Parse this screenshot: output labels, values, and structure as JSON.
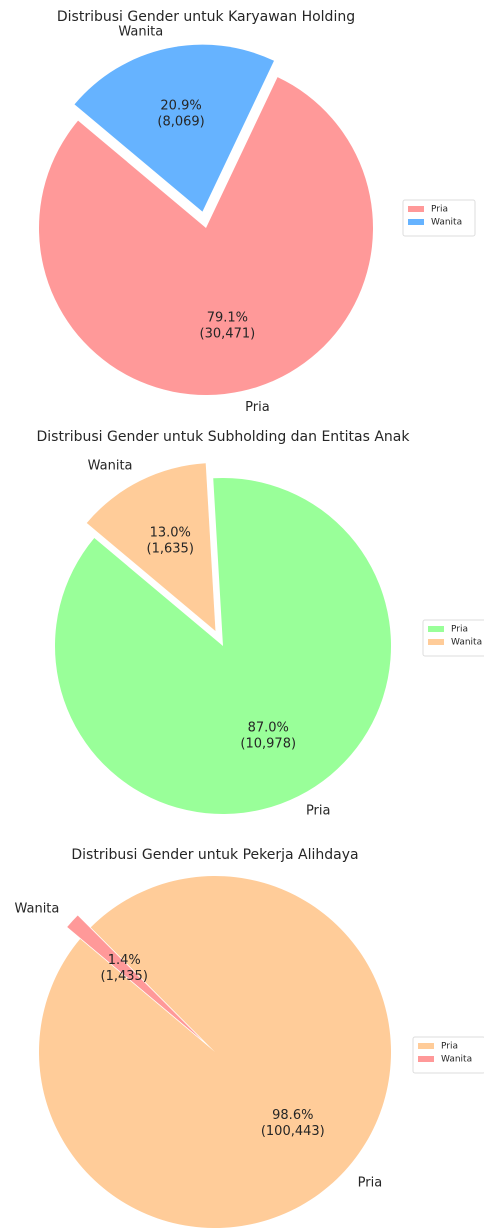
{
  "chart_data": [
    {
      "type": "pie",
      "title": "Distribusi Gender untuk Karyawan Holding",
      "categories": [
        "Pria",
        "Wanita"
      ],
      "values": [
        30471,
        8069
      ],
      "value_labels": [
        "(30,471)",
        "(8,069)"
      ],
      "percents": [
        79.1,
        20.9
      ],
      "percent_labels": [
        "79.1%",
        "20.9%"
      ],
      "colors": [
        "#ff9999",
        "#66b3ff"
      ],
      "explode": [
        0,
        0.1
      ],
      "startangle": 140,
      "legend": "right"
    },
    {
      "type": "pie",
      "title": "Distribusi Gender untuk Subholding dan Entitas Anak",
      "categories": [
        "Pria",
        "Wanita"
      ],
      "values": [
        10978,
        1635
      ],
      "value_labels": [
        "(10,978)",
        "(1,635)"
      ],
      "percents": [
        87.0,
        13.0
      ],
      "percent_labels": [
        "87.0%",
        "13.0%"
      ],
      "colors": [
        "#99ff99",
        "#ffcc99"
      ],
      "explode": [
        0,
        0.1
      ],
      "startangle": 140,
      "legend": "right"
    },
    {
      "type": "pie",
      "title": "Distribusi Gender untuk Pekerja Alihdaya",
      "categories": [
        "Pria",
        "Wanita"
      ],
      "values": [
        100443,
        1435
      ],
      "value_labels": [
        "(100,443)",
        "(1,435)"
      ],
      "percents": [
        98.6,
        1.4
      ],
      "percent_labels": [
        "98.6%",
        "1.4%"
      ],
      "colors": [
        "#ffcc99",
        "#ff9999"
      ],
      "explode": [
        0,
        0.1
      ],
      "startangle": 140,
      "legend": "right"
    }
  ]
}
